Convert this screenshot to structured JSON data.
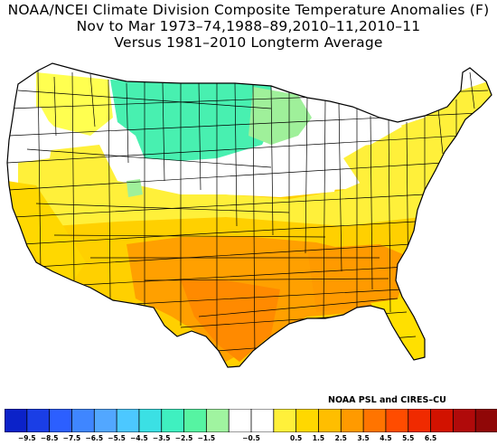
{
  "titles": {
    "line1": "NOAA/NCEI Climate Division Composite Temperature Anomalies (F)",
    "line2": "Nov to Mar  1973–74,1988–89,2010–11,2010–11",
    "line3": "Versus 1981–2010 Longterm Average"
  },
  "credit": "NOAA PSL and CIRES–CU",
  "legend": {
    "colors": [
      "#0b22c9",
      "#1a3ee6",
      "#2c5fff",
      "#3f86ff",
      "#52a7ff",
      "#4cc8ff",
      "#3be0e4",
      "#3ff0c0",
      "#56f4a2",
      "#a0f4a0",
      "#ffffff",
      "#ffffff",
      "#fff03a",
      "#ffd800",
      "#ffbe00",
      "#ff9a00",
      "#ff7400",
      "#ff4c00",
      "#f02a00",
      "#d21200",
      "#b00a0a",
      "#900707"
    ],
    "labels": [
      "−9.5",
      "−8.5",
      "−7.5",
      "−6.5",
      "−5.5",
      "−4.5",
      "−3.5",
      "−2.5",
      "−1.5",
      "−0.5",
      "0.5",
      "1.5",
      "2.5",
      "3.5",
      "4.5",
      "5.5",
      "6.5"
    ],
    "label_boundary_index": [
      1,
      2,
      3,
      4,
      5,
      6,
      7,
      8,
      9,
      11,
      13,
      14,
      15,
      16,
      17,
      18,
      19
    ]
  },
  "map_regions": [
    {
      "name": "washington-west",
      "fill": "#ffffff"
    },
    {
      "name": "oregon",
      "fill": "#ffffff"
    },
    {
      "name": "northern-rockies",
      "fill": "#ffff50"
    },
    {
      "name": "northern-plains",
      "fill": "#48f0b0"
    },
    {
      "name": "upper-midwest",
      "fill": "#9ff09a"
    },
    {
      "name": "great-basin",
      "fill": "#fff03a"
    },
    {
      "name": "california",
      "fill": "#ffd800"
    },
    {
      "name": "central-plains",
      "fill": "#ffffff"
    },
    {
      "name": "great-lakes-ohio",
      "fill": "#ffffff"
    },
    {
      "name": "northeast",
      "fill": "#fff03a"
    },
    {
      "name": "southwest",
      "fill": "#ffbe00"
    },
    {
      "name": "south-central",
      "fill": "#ffa000"
    },
    {
      "name": "southeast",
      "fill": "#ff9a00"
    },
    {
      "name": "texas-gulf",
      "fill": "#ff8a00"
    },
    {
      "name": "florida",
      "fill": "#ffe000"
    }
  ]
}
